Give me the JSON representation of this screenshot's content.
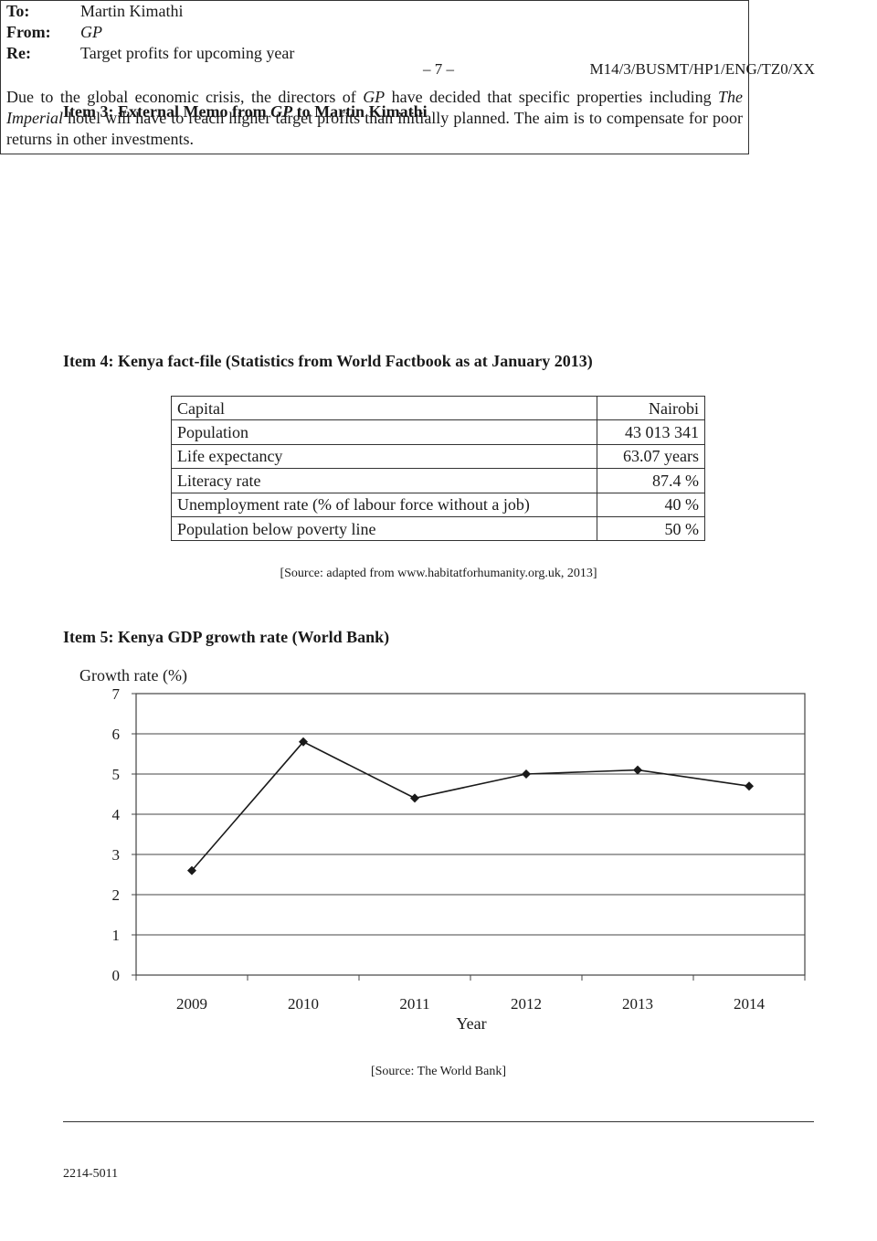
{
  "header": {
    "page_number": "– 7 –",
    "paper_code": "M14/3/BUSMT/HP1/ENG/TZ0/XX"
  },
  "item3": {
    "heading_prefix": "Item 3: External Memo from ",
    "heading_italic": "GP",
    "heading_suffix": " to Martin Kimathi",
    "to_label": "To:",
    "to_value": "Martin Kimathi",
    "from_label": "From:",
    "from_value": "GP",
    "re_label": "Re:",
    "re_value": "Target profits for upcoming year",
    "body_part1": "Due to the global economic crisis, the directors of ",
    "body_gp": "GP",
    "body_part2": " have decided that specific properties including ",
    "body_imperial": "The Imperial",
    "body_part3": " hotel will have to reach higher target profits than initially planned. The aim is to compensate for poor returns in other investments."
  },
  "item4": {
    "heading": "Item 4: Kenya fact-file (Statistics from World Factbook as at January 2013)",
    "rows": [
      {
        "label": "Capital",
        "value": "Nairobi"
      },
      {
        "label": "Population",
        "value": "43 013 341"
      },
      {
        "label": "Life expectancy",
        "value": "63.07 years"
      },
      {
        "label": "Literacy rate",
        "value": "87.4 %"
      },
      {
        "label": "Unemployment rate (% of labour force without a job)",
        "value": "40 %"
      },
      {
        "label": "Population below poverty line",
        "value": "50 %"
      }
    ],
    "source": "[Source: adapted from www.habitatforhumanity.org.uk, 2013]"
  },
  "item5": {
    "heading": "Item 5: Kenya GDP growth rate (World Bank)",
    "source": "[Source: The World Bank]"
  },
  "chart_data": {
    "type": "line",
    "title": "",
    "xlabel": "Year",
    "ylabel": "Growth rate (%)",
    "categories": [
      "2009",
      "2010",
      "2011",
      "2012",
      "2013",
      "2014"
    ],
    "series": [
      {
        "values": [
          2.6,
          5.8,
          4.4,
          5.0,
          5.1,
          4.7
        ]
      }
    ],
    "ylim": [
      0,
      7
    ],
    "yticks": [
      0,
      1,
      2,
      3,
      4,
      5,
      6,
      7
    ],
    "grid": "horizontal",
    "marker": "diamond",
    "colors": {
      "line": "#1a1a1a",
      "grid": "#444444"
    }
  },
  "footer": {
    "code": "2214-5011"
  }
}
